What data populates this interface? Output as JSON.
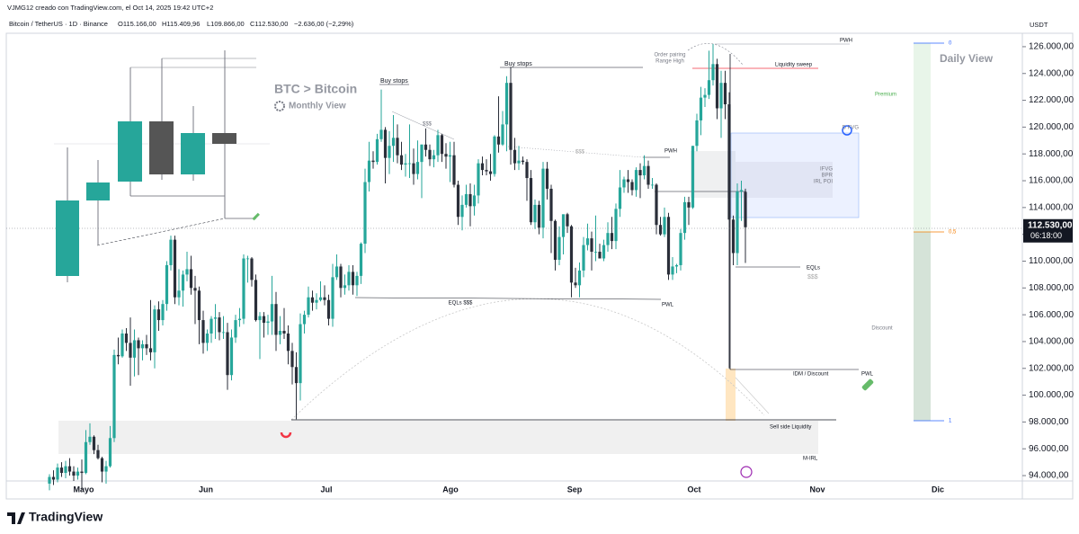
{
  "header": {
    "author": "VJMG12 creado con TradingView.com, el Oct 14, 2025 19:42 UTC+2",
    "symbol": "Bitcoin / TetherUS · 1D · Binance",
    "open": "O115.166,00",
    "high": "H115.409,96",
    "low": "L109.866,00",
    "close": "C112.530,00",
    "change": "−2.636,00 (−2,29%)"
  },
  "chart_data": {
    "type": "candlestick",
    "currency": "USDT",
    "up_color": "#26a69a",
    "down_color": "#2a2e39",
    "grid": false,
    "ylim": [
      93600,
      126800
    ],
    "yticks": [
      {
        "value": 126000,
        "label": "126.000,00"
      },
      {
        "value": 124000,
        "label": "124.000,00"
      },
      {
        "value": 122000,
        "label": "122.000,00"
      },
      {
        "value": 120000,
        "label": "120.000,00"
      },
      {
        "value": 118000,
        "label": "118.000,00"
      },
      {
        "value": 116000,
        "label": "116.000,00"
      },
      {
        "value": 114000,
        "label": "114.000,00"
      },
      {
        "value": 112000,
        "label": "112.000,00"
      },
      {
        "value": 110000,
        "label": "110.000,00"
      },
      {
        "value": 108000,
        "label": "108.000,00"
      },
      {
        "value": 106000,
        "label": "106.000,00"
      },
      {
        "value": 104000,
        "label": "104.000,00"
      },
      {
        "value": 102000,
        "label": "102.000,00"
      },
      {
        "value": 100000,
        "label": "100.000,00"
      },
      {
        "value": 98000,
        "label": "98.000,00"
      },
      {
        "value": 96000,
        "label": "96.000,00"
      },
      {
        "value": 94000,
        "label": "94.000,00"
      }
    ],
    "current_price": {
      "value": 112530,
      "label": "112.530,00"
    },
    "countdown": "06:18:00",
    "x_labels": [
      "Mayo",
      "Jun",
      "Jul",
      "Ago",
      "Sep",
      "Oct",
      "Nov",
      "Dic"
    ],
    "fib_levels": [
      0,
      {
        "value": 0.5,
        "label": "0,5"
      },
      1
    ],
    "annotations": [
      "BTC > Bitcoin",
      "Monthly View",
      "Daily View",
      "Buy stops",
      "Buy stops",
      "$$$",
      "$$$",
      "Order pairing",
      "Range High",
      "PWH",
      "Liquidity sweep",
      "PWH",
      "D FVG",
      "IFVG",
      "BPR",
      "IRL POI",
      "Premium",
      "EQLs",
      "$$$",
      "EQLs $$$",
      "PWL",
      "Discount",
      "IDM / Discount",
      "PWL",
      "Sell side Liquidity",
      "M-IRL"
    ],
    "ohlc": [
      [
        93400,
        94100,
        92900,
        93900
      ],
      [
        93900,
        94400,
        93300,
        93700
      ],
      [
        93700,
        94900,
        93500,
        94600
      ],
      [
        94600,
        95000,
        93900,
        94200
      ],
      [
        94200,
        95100,
        93800,
        94700
      ],
      [
        94700,
        95300,
        94000,
        94300
      ],
      [
        94300,
        94700,
        93600,
        94000
      ],
      [
        94000,
        94600,
        93700,
        94300
      ],
      [
        94300,
        95200,
        92900,
        94200
      ],
      [
        94200,
        97400,
        94100,
        96500
      ],
      [
        96500,
        97900,
        96300,
        96900
      ],
      [
        96900,
        97000,
        95600,
        95900
      ],
      [
        95900,
        96300,
        95200,
        95300
      ],
      [
        95300,
        95400,
        93500,
        94300
      ],
      [
        94300,
        95100,
        93400,
        94700
      ],
      [
        94700,
        97700,
        94600,
        96800
      ],
      [
        96800,
        103400,
        96500,
        103000
      ],
      [
        103000,
        104300,
        102300,
        102900
      ],
      [
        102900,
        104900,
        102800,
        104600
      ],
      [
        104600,
        105000,
        103300,
        103900
      ],
      [
        103900,
        105800,
        100700,
        102800
      ],
      [
        102800,
        104900,
        101400,
        104100
      ],
      [
        104100,
        104300,
        101500,
        103500
      ],
      [
        103500,
        104100,
        102600,
        103800
      ],
      [
        103800,
        104500,
        103000,
        103500
      ],
      [
        103500,
        107100,
        102600,
        103200
      ],
      [
        103200,
        106700,
        102000,
        106400
      ],
      [
        106400,
        107000,
        104800,
        105600
      ],
      [
        105600,
        107100,
        105200,
        106800
      ],
      [
        106800,
        110000,
        106300,
        109700
      ],
      [
        109700,
        111900,
        109300,
        111600
      ],
      [
        111600,
        111900,
        106800,
        107300
      ],
      [
        107300,
        109400,
        106700,
        107800
      ],
      [
        107800,
        109300,
        106600,
        109000
      ],
      [
        109000,
        110700,
        108500,
        109400
      ],
      [
        109400,
        110400,
        107500,
        108000
      ],
      [
        108000,
        108900,
        105300,
        107800
      ],
      [
        107800,
        108100,
        103800,
        105600
      ],
      [
        105600,
        106300,
        103100,
        103900
      ],
      [
        103900,
        104900,
        103300,
        104600
      ],
      [
        104600,
        105900,
        103900,
        105700
      ],
      [
        105700,
        106800,
        104200,
        105800
      ],
      [
        105800,
        106200,
        104100,
        104700
      ],
      [
        104700,
        105900,
        104200,
        104700
      ],
      [
        104700,
        105400,
        100400,
        101500
      ],
      [
        101500,
        104900,
        101100,
        104300
      ],
      [
        104300,
        106000,
        103900,
        105600
      ],
      [
        105600,
        106500,
        105100,
        105700
      ],
      [
        105700,
        110500,
        105300,
        110200
      ],
      [
        110200,
        110400,
        108400,
        110200
      ],
      [
        110200,
        110300,
        108100,
        108600
      ],
      [
        108600,
        109000,
        105500,
        105600
      ],
      [
        105600,
        106200,
        102700,
        105900
      ],
      [
        105900,
        106200,
        104300,
        105400
      ],
      [
        105400,
        106000,
        104500,
        105500
      ],
      [
        105500,
        108900,
        104500,
        106800
      ],
      [
        106800,
        107700,
        103300,
        104500
      ],
      [
        104500,
        105900,
        103800,
        104800
      ],
      [
        104800,
        106500,
        104200,
        104600
      ],
      [
        104600,
        105200,
        102300,
        103300
      ],
      [
        103300,
        103900,
        100800,
        102100
      ],
      [
        102100,
        103200,
        98200,
        100900
      ],
      [
        100900,
        106100,
        99600,
        105300
      ],
      [
        105300,
        106300,
        104600,
        106000
      ],
      [
        106000,
        108100,
        105800,
        107300
      ],
      [
        107300,
        107800,
        106300,
        106900
      ],
      [
        106900,
        107600,
        106400,
        107100
      ],
      [
        107100,
        108500,
        107000,
        107300
      ],
      [
        107300,
        108200,
        106700,
        107100
      ],
      [
        107100,
        107500,
        105200,
        105700
      ],
      [
        105700,
        109800,
        105100,
        108800
      ],
      [
        108800,
        110500,
        108600,
        109600
      ],
      [
        109600,
        109800,
        107300,
        108000
      ],
      [
        108000,
        109000,
        107500,
        108200
      ],
      [
        108200,
        109700,
        107800,
        109200
      ],
      [
        109200,
        109700,
        107500,
        108200
      ],
      [
        108200,
        109200,
        107400,
        108900
      ],
      [
        108900,
        111400,
        108300,
        111300
      ],
      [
        111300,
        116900,
        110600,
        115900
      ],
      [
        115900,
        118900,
        115200,
        117500
      ],
      [
        117500,
        118200,
        116900,
        117400
      ],
      [
        117400,
        119500,
        117200,
        119100
      ],
      [
        119100,
        122800,
        118900,
        119800
      ],
      [
        119800,
        120000,
        115800,
        117700
      ],
      [
        117700,
        119700,
        116500,
        118600
      ],
      [
        118600,
        120900,
        117400,
        119200
      ],
      [
        119200,
        120200,
        117300,
        117900
      ],
      [
        117900,
        118900,
        116800,
        117200
      ],
      [
        117200,
        118000,
        116300,
        117300
      ],
      [
        117300,
        120200,
        116200,
        117300
      ],
      [
        117300,
        118400,
        115700,
        116500
      ],
      [
        116500,
        119000,
        116100,
        117400
      ],
      [
        117400,
        118700,
        114700,
        118700
      ],
      [
        118700,
        119900,
        117800,
        118300
      ],
      [
        118300,
        118700,
        117100,
        117600
      ],
      [
        117600,
        118300,
        117000,
        117900
      ],
      [
        117900,
        119800,
        117400,
        119400
      ],
      [
        119400,
        119500,
        117400,
        118000
      ],
      [
        118000,
        118800,
        116900,
        117800
      ],
      [
        117800,
        118900,
        115900,
        117900
      ],
      [
        117900,
        118900,
        115500,
        115700
      ],
      [
        115700,
        116000,
        112700,
        113300
      ],
      [
        113300,
        114900,
        112300,
        114200
      ],
      [
        114200,
        115700,
        114000,
        115000
      ],
      [
        115000,
        115800,
        112600,
        114100
      ],
      [
        114100,
        115700,
        113400,
        114900
      ],
      [
        114900,
        117600,
        114300,
        117300
      ],
      [
        117300,
        117800,
        116400,
        116800
      ],
      [
        116800,
        117600,
        116400,
        116700
      ],
      [
        116700,
        118000,
        116000,
        116500
      ],
      [
        116500,
        119400,
        116300,
        119300
      ],
      [
        119300,
        122300,
        118100,
        118700
      ],
      [
        118700,
        121200,
        118600,
        120200
      ],
      [
        120200,
        123800,
        118200,
        123300
      ],
      [
        123300,
        124500,
        117200,
        118300
      ],
      [
        118300,
        119200,
        116800,
        117300
      ],
      [
        117300,
        118600,
        116800,
        117500
      ],
      [
        117500,
        117800,
        117200,
        117400
      ],
      [
        117400,
        117600,
        114500,
        116200
      ],
      [
        116200,
        116800,
        112700,
        112900
      ],
      [
        112900,
        114600,
        112400,
        114200
      ],
      [
        114200,
        114500,
        112000,
        112500
      ],
      [
        112500,
        117400,
        111700,
        116900
      ],
      [
        116900,
        117400,
        114600,
        115400
      ],
      [
        115400,
        115700,
        110600,
        113000
      ],
      [
        113000,
        113100,
        109300,
        110100
      ],
      [
        110100,
        112600,
        109700,
        111800
      ],
      [
        111800,
        113400,
        110500,
        113500
      ],
      [
        113500,
        113600,
        112100,
        112600
      ],
      [
        112600,
        112700,
        107300,
        108400
      ],
      [
        108400,
        109500,
        108000,
        108200
      ],
      [
        108200,
        109900,
        107300,
        109300
      ],
      [
        109300,
        111800,
        108800,
        111200
      ],
      [
        111200,
        112800,
        110800,
        111700
      ],
      [
        111700,
        112200,
        109300,
        110700
      ],
      [
        110700,
        113400,
        110000,
        110700
      ],
      [
        110700,
        111300,
        110200,
        110200
      ],
      [
        110200,
        111600,
        110000,
        111200
      ],
      [
        111200,
        112900,
        110700,
        112100
      ],
      [
        112100,
        113300,
        110900,
        111500
      ],
      [
        111500,
        114300,
        110900,
        113900
      ],
      [
        113900,
        116800,
        113300,
        115500
      ],
      [
        115500,
        116300,
        115100,
        116100
      ],
      [
        116100,
        116800,
        115100,
        115900
      ],
      [
        115900,
        116100,
        114900,
        115300
      ],
      [
        115300,
        117000,
        114800,
        116800
      ],
      [
        116800,
        117300,
        114700,
        116400
      ],
      [
        116400,
        117900,
        116100,
        117100
      ],
      [
        117100,
        117500,
        115400,
        115700
      ],
      [
        115700,
        116200,
        115400,
        115700
      ],
      [
        115700,
        115800,
        112000,
        112700
      ],
      [
        112700,
        113300,
        111900,
        112000
      ],
      [
        112000,
        114000,
        111800,
        113300
      ],
      [
        113300,
        113600,
        108600,
        109000
      ],
      [
        109000,
        110300,
        108600,
        109600
      ],
      [
        109600,
        109800,
        109100,
        109700
      ],
      [
        109700,
        112400,
        109300,
        112100
      ],
      [
        112100,
        114800,
        111600,
        114400
      ],
      [
        114400,
        114800,
        112700,
        114000
      ],
      [
        114000,
        118600,
        113900,
        118600
      ],
      [
        118600,
        121000,
        118200,
        120500
      ],
      [
        120500,
        123000,
        119400,
        122200
      ],
      [
        122200,
        122900,
        121500,
        122400
      ],
      [
        122400,
        125700,
        122100,
        123500
      ],
      [
        123500,
        126200,
        123100,
        124700
      ],
      [
        124700,
        125100,
        120600,
        121400
      ],
      [
        121400,
        124200,
        119200,
        123300
      ],
      [
        123300,
        124200,
        120600,
        121700
      ],
      [
        121700,
        122600,
        102000,
        113100
      ],
      [
        113100,
        113400,
        109700,
        110600
      ],
      [
        110600,
        115800,
        109700,
        115200
      ],
      [
        115200,
        116000,
        113000,
        115300
      ],
      [
        115166,
        115409.96,
        109866,
        112530
      ]
    ]
  },
  "footer": {
    "brand": "TradingView"
  }
}
